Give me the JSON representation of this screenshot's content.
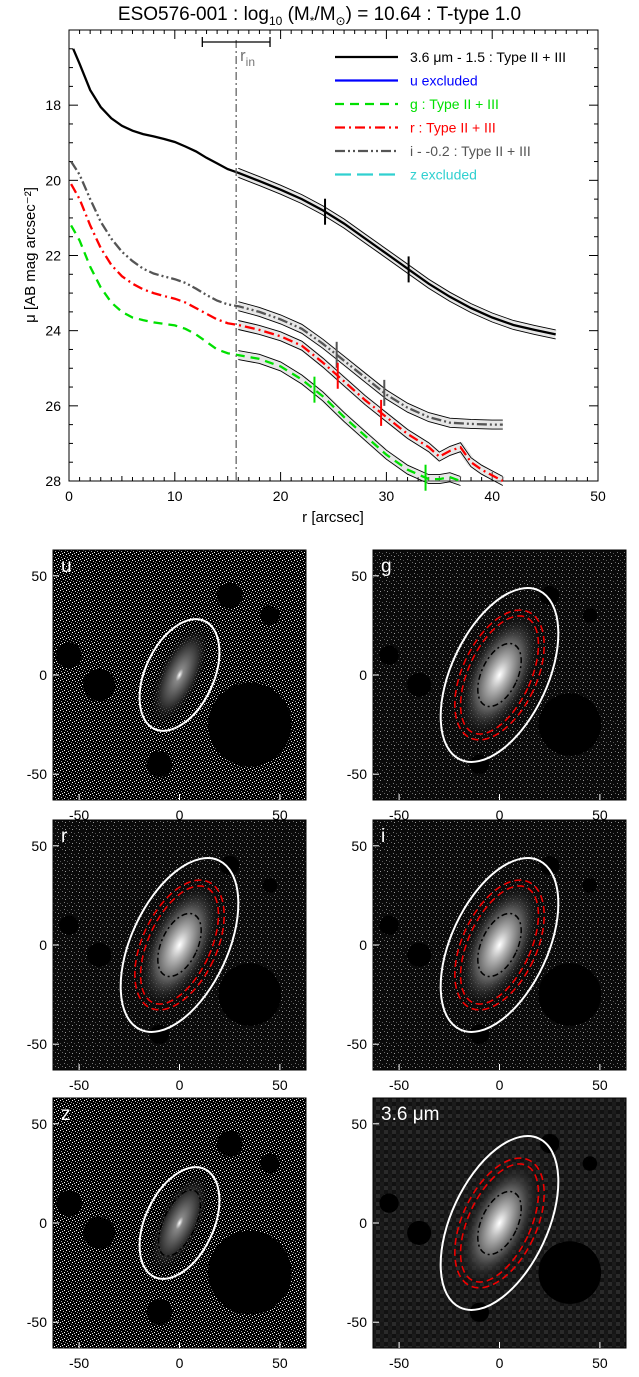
{
  "figure": {
    "title_galaxy": "ESO576-001",
    "title_mid": " : log",
    "title_sub": "10",
    "title_mass": " (M",
    "title_star": "*",
    "title_div": "/M",
    "title_sun": "⊙",
    "title_end": ") = 10.64 : T-type 1.0",
    "rin_label": "r",
    "rin_sub": "in",
    "xlabel": "r [arcsec]",
    "ylabel": "μ [AB mag arcsec⁻²]"
  },
  "chart_data": [
    {
      "type": "line",
      "title": "ESO576-001 : log10 (M*/M⊙) = 10.64 : T-type 1.0",
      "xlabel": "r [arcsec]",
      "ylabel": "μ [AB mag arcsec^-2]",
      "xlim": [
        0,
        50
      ],
      "ylim": [
        28,
        16
      ],
      "y_inverted": true,
      "x_ticks": [
        0,
        10,
        20,
        30,
        40,
        50
      ],
      "y_ticks": [
        18,
        20,
        22,
        24,
        26,
        28
      ],
      "r_in": 15.8,
      "r_in_range": [
        12.6,
        19.0
      ],
      "legend": [
        {
          "label": "3.6 μm - 1.5 : Type II + III",
          "color": "#000000",
          "dash": "solid"
        },
        {
          "label": "u excluded",
          "color": "#0000ff",
          "dash": "solid"
        },
        {
          "label": "g : Type II + III",
          "color": "#00e000",
          "dash": "dash"
        },
        {
          "label": "r : Type II + III",
          "color": "#ff0000",
          "dash": "dashdot"
        },
        {
          "label": "i - -0.2 : Type II + III",
          "color": "#555555",
          "dash": "dashdotdot"
        },
        {
          "label": "z excluded",
          "color": "#30d0d0",
          "dash": "longdash"
        }
      ],
      "series": [
        {
          "name": "3.6 μm - 1.5 : Type II + III",
          "color": "#000000",
          "x": [
            0.4,
            1,
            2,
            3,
            4,
            5,
            6,
            7,
            8,
            9,
            10,
            11,
            12,
            13,
            14,
            15,
            16,
            18,
            20,
            22,
            24,
            26,
            28,
            30,
            32,
            34,
            36,
            38,
            40,
            42,
            44,
            46
          ],
          "y": [
            16.5,
            16.9,
            17.6,
            18.05,
            18.35,
            18.55,
            18.68,
            18.77,
            18.83,
            18.9,
            18.98,
            19.1,
            19.23,
            19.4,
            19.55,
            19.7,
            19.8,
            20.02,
            20.25,
            20.5,
            20.8,
            21.15,
            21.55,
            21.95,
            22.35,
            22.75,
            23.1,
            23.4,
            23.65,
            23.85,
            23.98,
            24.1
          ],
          "breaks": [
            24.2,
            32.1
          ]
        },
        {
          "name": "i - -0.2 : Type II + III",
          "color": "#555555",
          "x": [
            0.2,
            1,
            2,
            3,
            4,
            5,
            6,
            7,
            8,
            9,
            10,
            11,
            12,
            13,
            14,
            15,
            16,
            18,
            20,
            22,
            24,
            26,
            28,
            30,
            32,
            34,
            36,
            38,
            40,
            41
          ],
          "y": [
            19.5,
            19.85,
            20.5,
            21.1,
            21.55,
            21.9,
            22.15,
            22.35,
            22.48,
            22.56,
            22.63,
            22.73,
            22.88,
            23.05,
            23.2,
            23.3,
            23.35,
            23.5,
            23.7,
            23.95,
            24.35,
            24.8,
            25.25,
            25.7,
            26.05,
            26.3,
            26.45,
            26.48,
            26.5,
            26.5
          ],
          "breaks": [
            25.3,
            29.8
          ]
        },
        {
          "name": "r : Type II + III",
          "color": "#ff0000",
          "x": [
            0.2,
            1,
            2,
            3,
            4,
            5,
            6,
            7,
            8,
            9,
            10,
            11,
            12,
            13,
            14,
            15,
            16,
            18,
            20,
            22,
            24,
            26,
            28,
            30,
            32,
            34,
            35,
            36,
            37,
            38,
            39,
            40,
            41
          ],
          "y": [
            20.1,
            20.5,
            21.2,
            21.8,
            22.25,
            22.55,
            22.75,
            22.9,
            23.0,
            23.08,
            23.15,
            23.25,
            23.4,
            23.55,
            23.7,
            23.8,
            23.85,
            23.98,
            24.15,
            24.4,
            24.85,
            25.35,
            25.85,
            26.3,
            26.75,
            27.1,
            27.35,
            27.2,
            27.1,
            27.5,
            27.7,
            27.85,
            28.0
          ],
          "breaks": [
            25.4,
            29.5
          ]
        },
        {
          "name": "g : Type II + III",
          "color": "#00e000",
          "x": [
            0.2,
            1,
            2,
            3,
            4,
            5,
            6,
            7,
            8,
            9,
            10,
            11,
            12,
            13,
            14,
            15,
            16,
            18,
            20,
            22,
            24,
            26,
            28,
            30,
            32,
            34,
            35,
            36,
            37
          ],
          "y": [
            21.2,
            21.6,
            22.3,
            22.85,
            23.25,
            23.5,
            23.65,
            23.72,
            23.78,
            23.82,
            23.86,
            23.95,
            24.1,
            24.3,
            24.5,
            24.6,
            24.65,
            24.75,
            24.95,
            25.3,
            25.75,
            26.3,
            26.8,
            27.3,
            27.7,
            27.95,
            27.95,
            27.9,
            28.0
          ],
          "breaks": [
            23.2,
            33.7
          ]
        }
      ]
    }
  ],
  "panels": [
    {
      "label": "u",
      "x_ticks": [
        "-50",
        "0",
        "50"
      ],
      "y_ticks": [
        "50",
        "0",
        "-50"
      ]
    },
    {
      "label": "g",
      "x_ticks": [
        "-50",
        "0",
        "50"
      ],
      "y_ticks": [
        "50",
        "0",
        "-50"
      ]
    },
    {
      "label": "r",
      "x_ticks": [
        "-50",
        "0",
        "50"
      ],
      "y_ticks": [
        "50",
        "0",
        "-50"
      ]
    },
    {
      "label": "i",
      "x_ticks": [
        "-50",
        "0",
        "50"
      ],
      "y_ticks": [
        "50",
        "0",
        "-50"
      ]
    },
    {
      "label": "z",
      "x_ticks": [
        "-50",
        "0",
        "50"
      ],
      "y_ticks": [
        "50",
        "0",
        "-50"
      ]
    },
    {
      "label": "3.6 μm",
      "x_ticks": [
        "-50",
        "0",
        "50"
      ],
      "y_ticks": [
        "50",
        "0",
        "-50"
      ]
    }
  ]
}
